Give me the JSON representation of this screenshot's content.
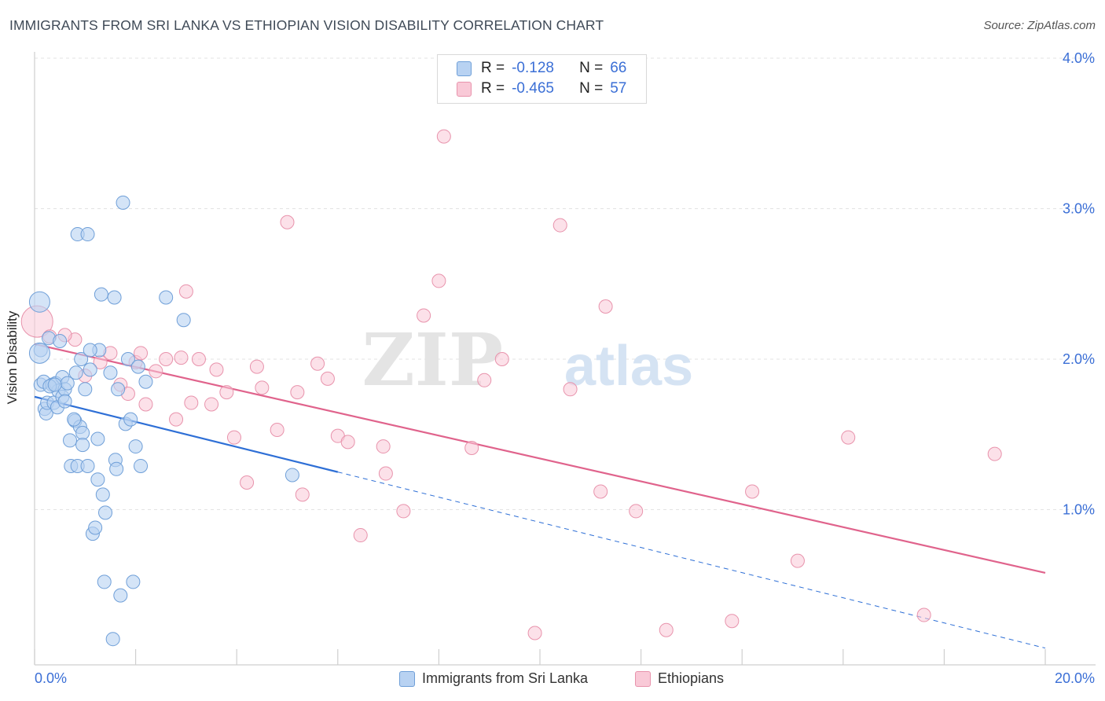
{
  "title": "IMMIGRANTS FROM SRI LANKA VS ETHIOPIAN VISION DISABILITY CORRELATION CHART",
  "source": "Source: ZipAtlas.com",
  "watermark": {
    "zip": "ZIP",
    "atlas": "atlas"
  },
  "legend": {
    "r_label": "R =",
    "n_label": "N =",
    "series": [
      {
        "r": "-0.128",
        "n": "66"
      },
      {
        "r": "-0.465",
        "n": "57"
      }
    ]
  },
  "colors": {
    "blue_fill": "#b8d2f2",
    "blue_stroke": "#6f9fd8",
    "blue_line": "#2e6fd6",
    "pink_fill": "#f9c9d7",
    "pink_stroke": "#e893ac",
    "pink_line": "#e0638c",
    "tick_text": "#3b6fd6",
    "grid": "#e3e3e3"
  },
  "chart_data": {
    "type": "scatter",
    "title": "IMMIGRANTS FROM SRI LANKA VS ETHIOPIAN VISION DISABILITY CORRELATION CHART",
    "xlabel": "",
    "ylabel": "Vision Disability",
    "xlim": [
      0,
      20
    ],
    "ylim": [
      0,
      4.15
    ],
    "x_tick_labels": [
      "0.0%",
      "20.0%"
    ],
    "y_ticks": [
      1,
      2,
      3,
      4
    ],
    "y_tick_labels": [
      "1.0%",
      "2.0%",
      "3.0%",
      "4.0%"
    ],
    "grid": true,
    "series": [
      {
        "name": "Immigrants from Sri Lanka",
        "color": "blue",
        "r": -0.128,
        "n": 66,
        "trend": {
          "x0": 0,
          "y0": 1.75,
          "x1": 6.0,
          "y1": 1.25,
          "dash_to_x": 20,
          "dash_to_y": 0.08
        },
        "points": [
          [
            0.1,
            2.38
          ],
          [
            0.12,
            2.06
          ],
          [
            0.1,
            2.04
          ],
          [
            0.12,
            1.83
          ],
          [
            0.18,
            1.85
          ],
          [
            0.2,
            1.67
          ],
          [
            0.23,
            1.64
          ],
          [
            0.25,
            1.71
          ],
          [
            0.28,
            2.14
          ],
          [
            0.35,
            1.83
          ],
          [
            0.38,
            1.71
          ],
          [
            0.42,
            1.84
          ],
          [
            0.45,
            1.68
          ],
          [
            0.47,
            1.79
          ],
          [
            0.5,
            2.12
          ],
          [
            0.55,
            1.75
          ],
          [
            0.55,
            1.88
          ],
          [
            0.6,
            1.8
          ],
          [
            0.65,
            1.84
          ],
          [
            0.7,
            1.46
          ],
          [
            0.72,
            1.29
          ],
          [
            0.8,
            1.59
          ],
          [
            0.82,
            1.91
          ],
          [
            0.85,
            1.29
          ],
          [
            0.9,
            1.55
          ],
          [
            0.95,
            1.51
          ],
          [
            0.95,
            1.43
          ],
          [
            1.0,
            1.8
          ],
          [
            1.05,
            1.29
          ],
          [
            1.1,
            1.93
          ],
          [
            1.15,
            0.84
          ],
          [
            1.2,
            0.88
          ],
          [
            1.25,
            1.2
          ],
          [
            1.25,
            1.47
          ],
          [
            1.28,
            2.06
          ],
          [
            1.32,
            2.43
          ],
          [
            1.35,
            1.1
          ],
          [
            1.38,
            0.52
          ],
          [
            1.4,
            0.98
          ],
          [
            1.5,
            1.91
          ],
          [
            1.55,
            0.14
          ],
          [
            1.58,
            2.41
          ],
          [
            1.6,
            1.33
          ],
          [
            1.62,
            1.27
          ],
          [
            1.65,
            1.8
          ],
          [
            1.7,
            0.43
          ],
          [
            1.75,
            3.04
          ],
          [
            1.8,
            1.57
          ],
          [
            1.85,
            2.0
          ],
          [
            1.9,
            1.6
          ],
          [
            1.95,
            0.52
          ],
          [
            2.0,
            1.42
          ],
          [
            2.05,
            1.95
          ],
          [
            2.1,
            1.29
          ],
          [
            2.2,
            1.85
          ],
          [
            2.6,
            2.41
          ],
          [
            2.95,
            2.26
          ],
          [
            5.1,
            1.23
          ],
          [
            0.85,
            2.83
          ],
          [
            1.05,
            2.83
          ],
          [
            0.6,
            1.72
          ],
          [
            0.3,
            1.82
          ],
          [
            0.78,
            1.6
          ],
          [
            0.4,
            1.83
          ],
          [
            0.92,
            2.0
          ],
          [
            1.1,
            2.06
          ]
        ]
      },
      {
        "name": "Ethiopians",
        "color": "pink",
        "r": -0.465,
        "n": 57,
        "trend": {
          "x0": 0,
          "y0": 2.1,
          "x1": 20,
          "y1": 0.58
        },
        "points": [
          [
            0.05,
            2.25
          ],
          [
            0.3,
            2.15
          ],
          [
            0.8,
            2.13
          ],
          [
            1.0,
            1.89
          ],
          [
            1.3,
            1.98
          ],
          [
            1.5,
            2.04
          ],
          [
            1.7,
            1.83
          ],
          [
            1.85,
            1.77
          ],
          [
            2.0,
            1.98
          ],
          [
            2.1,
            2.04
          ],
          [
            2.2,
            1.7
          ],
          [
            2.4,
            1.92
          ],
          [
            2.6,
            2.0
          ],
          [
            2.8,
            1.6
          ],
          [
            2.9,
            2.01
          ],
          [
            3.0,
            2.45
          ],
          [
            3.1,
            1.71
          ],
          [
            3.25,
            2.0
          ],
          [
            3.5,
            1.7
          ],
          [
            3.6,
            1.93
          ],
          [
            3.8,
            1.78
          ],
          [
            3.95,
            1.48
          ],
          [
            4.2,
            1.18
          ],
          [
            4.4,
            1.95
          ],
          [
            4.5,
            1.81
          ],
          [
            4.8,
            1.53
          ],
          [
            5.0,
            2.91
          ],
          [
            5.2,
            1.78
          ],
          [
            5.3,
            1.1
          ],
          [
            5.6,
            1.97
          ],
          [
            5.8,
            1.87
          ],
          [
            6.0,
            1.49
          ],
          [
            6.2,
            1.45
          ],
          [
            6.45,
            0.83
          ],
          [
            6.9,
            1.42
          ],
          [
            6.95,
            1.24
          ],
          [
            7.3,
            0.99
          ],
          [
            7.7,
            2.29
          ],
          [
            8.0,
            2.52
          ],
          [
            8.1,
            3.48
          ],
          [
            8.65,
            1.41
          ],
          [
            8.9,
            1.86
          ],
          [
            9.25,
            2.0
          ],
          [
            9.9,
            0.18
          ],
          [
            10.4,
            2.89
          ],
          [
            10.6,
            1.8
          ],
          [
            11.2,
            1.12
          ],
          [
            11.3,
            2.35
          ],
          [
            11.9,
            0.99
          ],
          [
            12.5,
            0.2
          ],
          [
            13.8,
            0.26
          ],
          [
            14.2,
            1.12
          ],
          [
            15.1,
            0.66
          ],
          [
            16.1,
            1.48
          ],
          [
            17.6,
            0.3
          ],
          [
            19.0,
            1.37
          ],
          [
            0.6,
            2.16
          ]
        ]
      }
    ]
  },
  "bottom_legend": [
    {
      "label": "Immigrants from Sri Lanka"
    },
    {
      "label": "Ethiopians"
    }
  ]
}
